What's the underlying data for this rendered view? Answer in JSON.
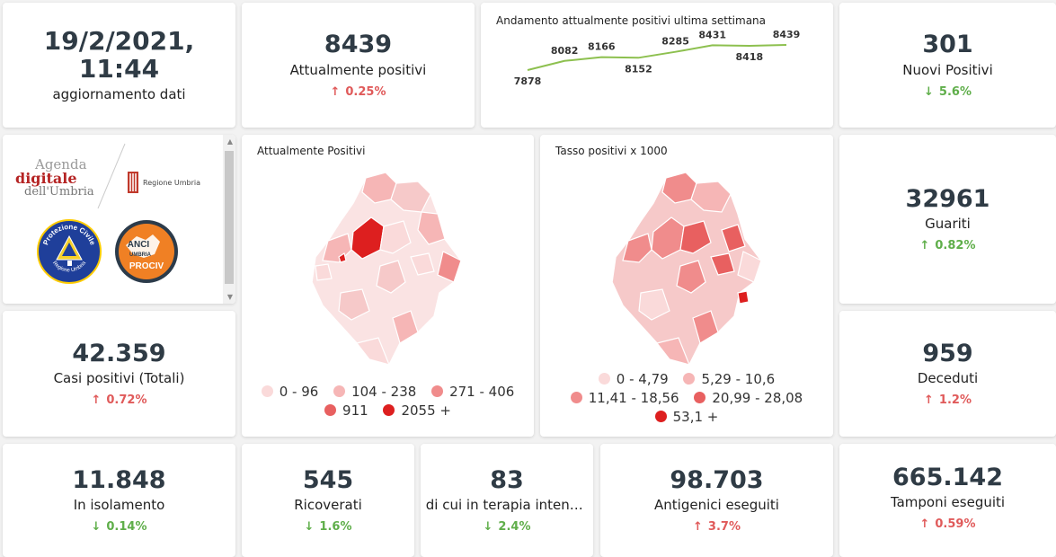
{
  "header": {
    "date": {
      "value": "19/2/2021, 11:44",
      "label": "aggiornamento dati"
    },
    "attualmente_positivi": {
      "value": "8439",
      "label": "Attualmente positivi",
      "delta": "0.25%",
      "direction": "up"
    },
    "nuovi_positivi": {
      "value": "301",
      "label": "Nuovi Positivi",
      "delta": "5.6%",
      "direction": "down"
    }
  },
  "trend": {
    "title": "Andamento attualmente positivi ultima settimana",
    "chart_data": {
      "type": "line",
      "values": [
        7878,
        8082,
        8166,
        8152,
        8285,
        8431,
        8418,
        8439
      ],
      "series": [
        {
          "values": [
            7878,
            8082,
            8166,
            8152,
            8285,
            8431,
            8418,
            8439
          ]
        }
      ],
      "color": "#8dc04f"
    }
  },
  "logos": {
    "agenda_line1": "Agenda",
    "agenda_line2": "digitale",
    "agenda_line3": "dell'Umbria",
    "regione": "Regione Umbria",
    "protezione_top": "Protezione Civile",
    "protezione_bottom": "Regione Umbria",
    "anci_line1": "ANCI",
    "anci_line2": "UMBRIA",
    "anci_line3": "PROCIV"
  },
  "map1": {
    "title": "Attualmente Positivi",
    "legend": [
      {
        "label": "0 - 96",
        "color": "#fadada"
      },
      {
        "label": "104 - 238",
        "color": "#f6b6b6"
      },
      {
        "label": "271 - 406",
        "color": "#f08c8c"
      },
      {
        "label": "911",
        "color": "#e86060"
      },
      {
        "label": "2055 +",
        "color": "#dd1f1f"
      }
    ]
  },
  "map2": {
    "title": "Tasso positivi x 1000",
    "legend": [
      {
        "label": "0 - 4,79",
        "color": "#fadada"
      },
      {
        "label": "5,29 - 10,6",
        "color": "#f6b6b6"
      },
      {
        "label": "11,41 - 18,56",
        "color": "#f08c8c"
      },
      {
        "label": "20,99 - 28,08",
        "color": "#e86060"
      },
      {
        "label": "53,1 +",
        "color": "#dd1f1f"
      }
    ]
  },
  "right": {
    "guariti": {
      "value": "32961",
      "label": "Guariti",
      "delta": "0.82%",
      "direction": "down"
    },
    "deceduti": {
      "value": "959",
      "label": "Deceduti",
      "delta": "1.2%",
      "direction": "up"
    },
    "tamponi": {
      "value": "665.142",
      "label": "Tamponi eseguiti",
      "delta": "0.59%",
      "direction": "up"
    }
  },
  "left": {
    "casi_totali": {
      "value": "42.359",
      "label": "Casi positivi (Totali)",
      "delta": "0.72%",
      "direction": "up"
    }
  },
  "bottom": {
    "isolamento": {
      "value": "11.848",
      "label": "In isolamento",
      "delta": "0.14%",
      "direction": "down"
    },
    "ricoverati": {
      "value": "545",
      "label": "Ricoverati",
      "delta": "1.6%",
      "direction": "down"
    },
    "terapia": {
      "value": "83",
      "label": "di cui in terapia intensiva",
      "delta": "2.4%",
      "direction": "down"
    },
    "antigenici": {
      "value": "98.703",
      "label": "Antigenici eseguiti",
      "delta": "3.7%",
      "direction": "up"
    }
  },
  "arrows": {
    "up": "↑",
    "down": "↓"
  }
}
